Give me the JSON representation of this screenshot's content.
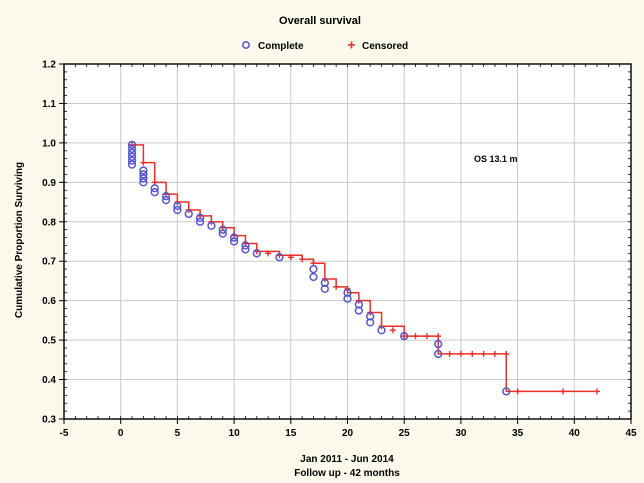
{
  "chart_data": {
    "type": "line",
    "title": "Overall survival",
    "xlabel_line1": "Jan 2011 - Jun 2014",
    "xlabel_line2": "Follow up - 42 months",
    "ylabel": "Cumulative Proportion Surviving",
    "xlim": [
      -5,
      45
    ],
    "ylim": [
      0.3,
      1.2
    ],
    "xticks": [
      -5,
      0,
      5,
      10,
      15,
      20,
      25,
      30,
      35,
      40,
      45
    ],
    "yticks": [
      0.3,
      0.4,
      0.5,
      0.6,
      0.7,
      0.8,
      0.9,
      1.0,
      1.1,
      1.2
    ],
    "grid": true,
    "legend_placement": "top-center",
    "annotation": "OS 13.1 m",
    "colors": {
      "complete": "#5555cc",
      "censored": "#e8302a",
      "grid": "#c9c9c9",
      "axis": "#000000"
    },
    "series": [
      {
        "name": "Complete",
        "marker": "circle",
        "x": [
          1,
          1,
          1,
          1,
          1,
          1,
          2,
          2,
          2,
          2,
          3,
          3,
          4,
          4,
          5,
          5,
          6,
          7,
          7,
          8,
          9,
          9,
          10,
          10,
          11,
          11,
          12,
          14,
          17,
          17,
          18,
          18,
          20,
          20,
          21,
          21,
          22,
          22,
          23,
          25,
          28,
          28,
          34
        ],
        "y": [
          0.995,
          0.985,
          0.975,
          0.965,
          0.955,
          0.945,
          0.93,
          0.92,
          0.91,
          0.9,
          0.885,
          0.875,
          0.865,
          0.855,
          0.84,
          0.83,
          0.82,
          0.81,
          0.8,
          0.79,
          0.78,
          0.77,
          0.76,
          0.75,
          0.74,
          0.73,
          0.72,
          0.71,
          0.68,
          0.66,
          0.645,
          0.63,
          0.62,
          0.605,
          0.59,
          0.575,
          0.56,
          0.545,
          0.525,
          0.51,
          0.49,
          0.465,
          0.37
        ]
      },
      {
        "name": "Censored",
        "marker": "plus",
        "x": [
          1,
          2,
          3,
          4,
          5,
          6,
          7,
          8,
          9,
          10,
          11,
          12,
          13,
          14,
          15,
          16,
          17,
          18,
          19,
          20,
          21,
          22,
          23,
          24,
          25,
          26,
          27,
          28,
          29,
          30,
          31,
          32,
          33,
          34,
          35,
          39,
          42
        ],
        "y": [
          0.995,
          0.95,
          0.9,
          0.87,
          0.85,
          0.83,
          0.815,
          0.8,
          0.785,
          0.765,
          0.745,
          0.725,
          0.72,
          0.715,
          0.71,
          0.705,
          0.695,
          0.655,
          0.635,
          0.63,
          0.6,
          0.57,
          0.535,
          0.525,
          0.51,
          0.51,
          0.51,
          0.51,
          0.465,
          0.465,
          0.465,
          0.465,
          0.465,
          0.465,
          0.37,
          0.37,
          0.37
        ]
      }
    ],
    "step_line": {
      "x": [
        1,
        2,
        3,
        4,
        5,
        6,
        7,
        8,
        9,
        10,
        11,
        12,
        14,
        16,
        17,
        18,
        19,
        20,
        21,
        22,
        23,
        25,
        28,
        34,
        42
      ],
      "y": [
        0.995,
        0.95,
        0.9,
        0.87,
        0.85,
        0.83,
        0.815,
        0.8,
        0.785,
        0.765,
        0.745,
        0.725,
        0.715,
        0.705,
        0.695,
        0.655,
        0.635,
        0.62,
        0.6,
        0.57,
        0.535,
        0.51,
        0.465,
        0.37,
        0.37
      ]
    }
  }
}
